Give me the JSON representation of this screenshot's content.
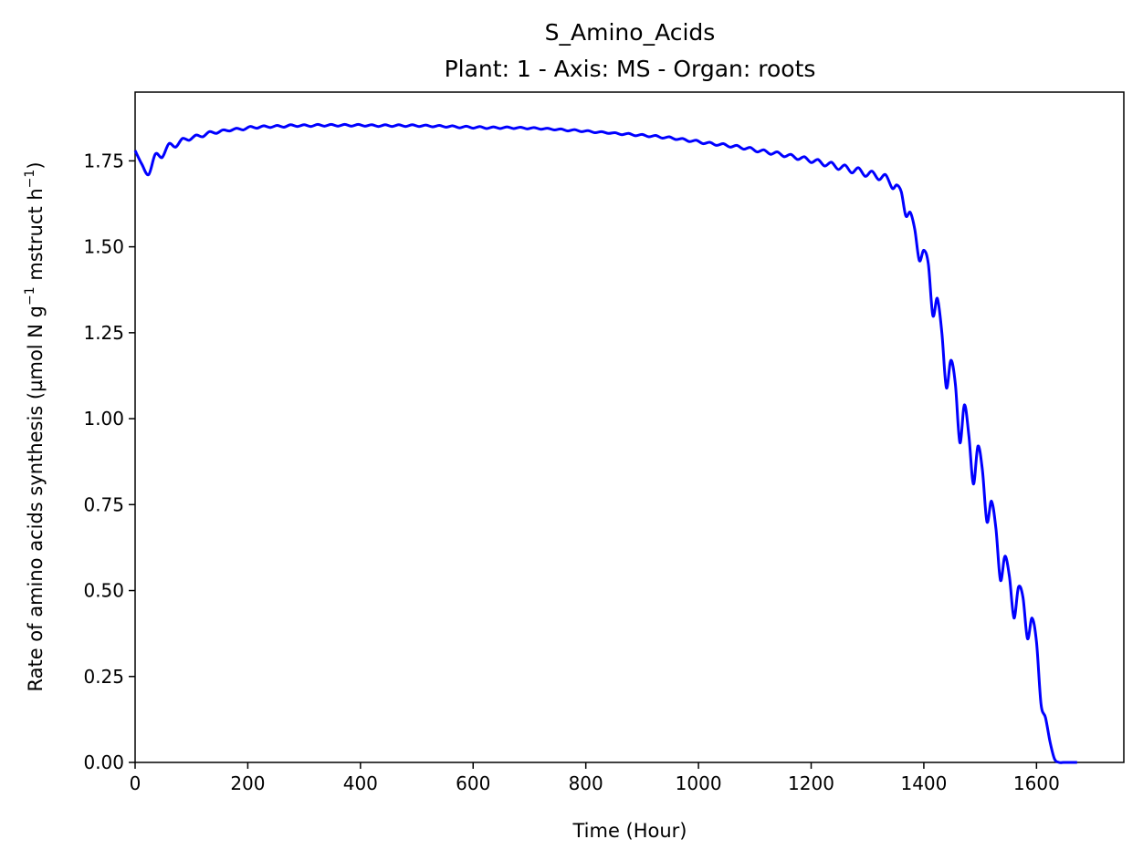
{
  "chart_data": {
    "type": "line",
    "title": "S_Amino_Acids",
    "subtitle": "Plant: 1 - Axis: MS - Organ: roots",
    "xlabel": "Time (Hour)",
    "ylabel_main": "Rate of amino acids synthesis (µmol N g",
    "ylabel_exp1": "−1",
    "ylabel_mid": " mstruct h",
    "ylabel_exp2": "−1",
    "ylabel_end": ")",
    "xlim": [
      0,
      1755
    ],
    "ylim": [
      0,
      1.95
    ],
    "xticks": [
      0,
      200,
      400,
      600,
      800,
      1000,
      1200,
      1400,
      1600
    ],
    "xtick_labels": [
      "0",
      "200",
      "400",
      "600",
      "800",
      "1000",
      "1200",
      "1400",
      "1600"
    ],
    "yticks": [
      0,
      0.25,
      0.5,
      0.75,
      1.0,
      1.25,
      1.5,
      1.75
    ],
    "ytick_labels": [
      "0.00",
      "0.25",
      "0.50",
      "0.75",
      "1.00",
      "1.25",
      "1.50",
      "1.75"
    ],
    "grid": false,
    "series": [
      {
        "name": "S_Amino_Acids",
        "color": "#0000ff",
        "x": [
          0,
          12,
          24,
          36,
          48,
          60,
          72,
          84,
          96,
          108,
          120,
          132,
          144,
          156,
          168,
          180,
          192,
          204,
          216,
          228,
          240,
          252,
          264,
          276,
          288,
          300,
          312,
          324,
          336,
          348,
          360,
          372,
          384,
          396,
          408,
          420,
          432,
          444,
          456,
          468,
          480,
          492,
          504,
          516,
          528,
          540,
          552,
          564,
          576,
          588,
          600,
          612,
          624,
          636,
          648,
          660,
          672,
          684,
          696,
          708,
          720,
          732,
          744,
          756,
          768,
          780,
          792,
          804,
          816,
          828,
          840,
          852,
          864,
          876,
          888,
          900,
          912,
          924,
          936,
          948,
          960,
          972,
          984,
          996,
          1008,
          1020,
          1032,
          1044,
          1056,
          1068,
          1080,
          1092,
          1104,
          1116,
          1128,
          1140,
          1152,
          1164,
          1176,
          1188,
          1200,
          1212,
          1224,
          1236,
          1248,
          1260,
          1272,
          1284,
          1296,
          1308,
          1320,
          1332,
          1344,
          1352,
          1360,
          1368,
          1376,
          1384,
          1392,
          1400,
          1408,
          1416,
          1424,
          1432,
          1440,
          1448,
          1456,
          1464,
          1472,
          1480,
          1488,
          1496,
          1504,
          1512,
          1520,
          1528,
          1536,
          1544,
          1552,
          1560,
          1568,
          1576,
          1584,
          1592,
          1600,
          1608,
          1616,
          1624,
          1632,
          1640,
          1648,
          1656,
          1664,
          1672
        ],
        "y": [
          1.78,
          1.74,
          1.71,
          1.77,
          1.76,
          1.8,
          1.79,
          1.815,
          1.81,
          1.825,
          1.82,
          1.835,
          1.83,
          1.84,
          1.837,
          1.845,
          1.84,
          1.85,
          1.845,
          1.852,
          1.847,
          1.853,
          1.848,
          1.855,
          1.85,
          1.855,
          1.85,
          1.856,
          1.851,
          1.856,
          1.851,
          1.856,
          1.851,
          1.856,
          1.851,
          1.855,
          1.85,
          1.855,
          1.85,
          1.855,
          1.85,
          1.855,
          1.85,
          1.854,
          1.849,
          1.853,
          1.848,
          1.852,
          1.846,
          1.851,
          1.845,
          1.85,
          1.844,
          1.849,
          1.844,
          1.849,
          1.844,
          1.848,
          1.843,
          1.847,
          1.842,
          1.845,
          1.84,
          1.843,
          1.837,
          1.841,
          1.835,
          1.838,
          1.832,
          1.835,
          1.83,
          1.832,
          1.826,
          1.83,
          1.823,
          1.827,
          1.82,
          1.824,
          1.816,
          1.82,
          1.812,
          1.815,
          1.806,
          1.81,
          1.8,
          1.804,
          1.795,
          1.8,
          1.79,
          1.795,
          1.784,
          1.789,
          1.776,
          1.782,
          1.769,
          1.776,
          1.762,
          1.769,
          1.754,
          1.762,
          1.745,
          1.754,
          1.735,
          1.746,
          1.725,
          1.738,
          1.715,
          1.73,
          1.705,
          1.72,
          1.695,
          1.71,
          1.67,
          1.68,
          1.66,
          1.59,
          1.6,
          1.55,
          1.46,
          1.49,
          1.45,
          1.3,
          1.35,
          1.25,
          1.09,
          1.17,
          1.1,
          0.93,
          1.04,
          0.95,
          0.81,
          0.92,
          0.85,
          0.7,
          0.76,
          0.68,
          0.53,
          0.6,
          0.54,
          0.42,
          0.51,
          0.48,
          0.36,
          0.42,
          0.35,
          0.17,
          0.13,
          0.06,
          0.01,
          0.0,
          0.0,
          0.0,
          0.0,
          0.0
        ]
      }
    ]
  }
}
